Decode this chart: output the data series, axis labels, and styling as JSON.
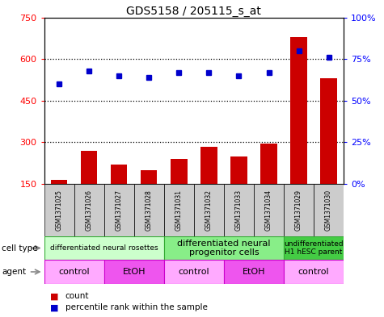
{
  "title": "GDS5158 / 205115_s_at",
  "samples": [
    "GSM1371025",
    "GSM1371026",
    "GSM1371027",
    "GSM1371028",
    "GSM1371031",
    "GSM1371032",
    "GSM1371033",
    "GSM1371034",
    "GSM1371029",
    "GSM1371030"
  ],
  "counts": [
    165,
    270,
    220,
    200,
    240,
    285,
    250,
    295,
    680,
    530
  ],
  "percentiles": [
    60,
    68,
    65,
    64,
    67,
    67,
    65,
    67,
    80,
    76
  ],
  "bar_color": "#cc0000",
  "dot_color": "#0000cc",
  "ylim_left": [
    150,
    750
  ],
  "ylim_right": [
    0,
    100
  ],
  "yticks_left": [
    150,
    300,
    450,
    600,
    750
  ],
  "yticks_right": [
    0,
    25,
    50,
    75,
    100
  ],
  "ytick_labels_left": [
    "150",
    "300",
    "450",
    "600",
    "750"
  ],
  "ytick_labels_right": [
    "0%",
    "25%",
    "50%",
    "75%",
    "100%"
  ],
  "grid_values": [
    300,
    450,
    600
  ],
  "cell_type_groups": [
    {
      "label": "differentiated neural rosettes",
      "start": 0,
      "end": 4,
      "color": "#ccffcc",
      "fontsize": 6.5
    },
    {
      "label": "differentiated neural\nprogenitor cells",
      "start": 4,
      "end": 8,
      "color": "#88ee88",
      "fontsize": 8
    },
    {
      "label": "undifferentiated\nH1 hESC parent",
      "start": 8,
      "end": 10,
      "color": "#44cc44",
      "fontsize": 6.5
    }
  ],
  "agent_groups": [
    {
      "label": "control",
      "start": 0,
      "end": 2,
      "color": "#ffaaff"
    },
    {
      "label": "EtOH",
      "start": 2,
      "end": 4,
      "color": "#ee55ee"
    },
    {
      "label": "control",
      "start": 4,
      "end": 6,
      "color": "#ffaaff"
    },
    {
      "label": "EtOH",
      "start": 6,
      "end": 8,
      "color": "#ee55ee"
    },
    {
      "label": "control",
      "start": 8,
      "end": 10,
      "color": "#ffaaff"
    }
  ],
  "cell_type_row_label": "cell type",
  "agent_row_label": "agent",
  "legend_count_label": "count",
  "legend_percentile_label": "percentile rank within the sample",
  "bar_width": 0.55,
  "sample_box_color": "#cccccc",
  "label_color": "#333333"
}
